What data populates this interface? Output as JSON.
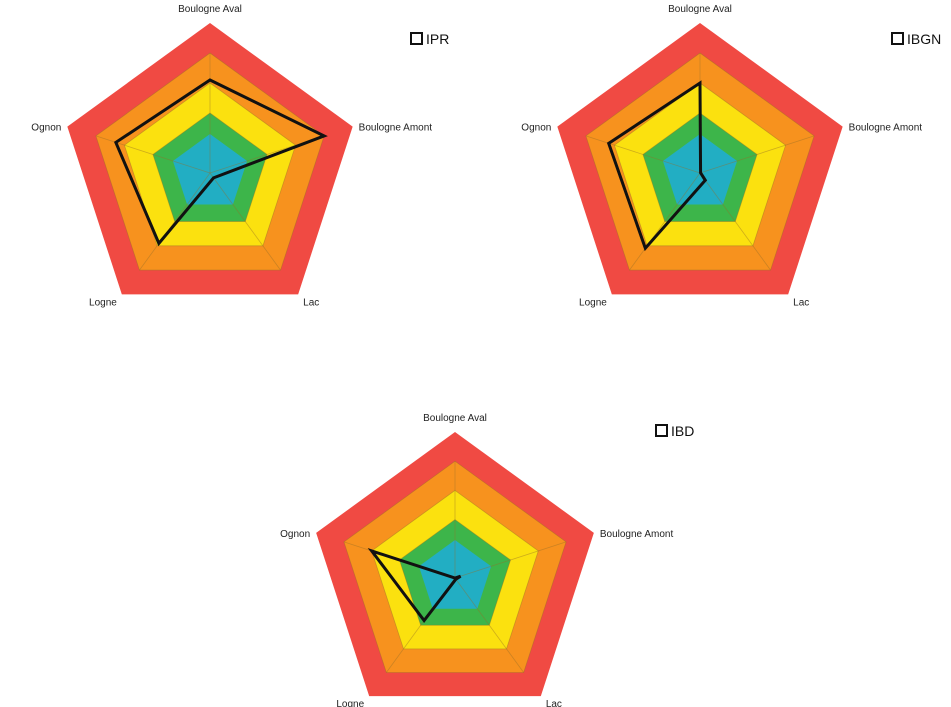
{
  "chart_data": [
    {
      "type": "radar",
      "axes": [
        "Boulogne Aval",
        "Boulogne Amont",
        "Lac",
        "Logne",
        "Ognon"
      ],
      "rlim": [
        0,
        5
      ],
      "bands": [
        {
          "value": 5,
          "color": "#f04a43"
        },
        {
          "value": 4,
          "color": "#f7921e"
        },
        {
          "value": 3,
          "color": "#fbe10f"
        },
        {
          "value": 2,
          "color": "#3db54a"
        },
        {
          "value": 1.3,
          "color": "#22aec3"
        }
      ],
      "legend_position": "top-right",
      "series": [
        {
          "name": "IPR",
          "color": "#111111",
          "values": [
            3.1,
            4.0,
            0.2,
            2.9,
            3.3
          ]
        }
      ]
    },
    {
      "type": "radar",
      "axes": [
        "Boulogne Aval",
        "Boulogne Amont",
        "Lac",
        "Logne",
        "Ognon"
      ],
      "rlim": [
        0,
        5
      ],
      "bands": [
        {
          "value": 5,
          "color": "#f04a43"
        },
        {
          "value": 4,
          "color": "#f7921e"
        },
        {
          "value": 3,
          "color": "#fbe10f"
        },
        {
          "value": 2,
          "color": "#3db54a"
        },
        {
          "value": 1.3,
          "color": "#22aec3"
        }
      ],
      "legend_position": "top-right",
      "series": [
        {
          "name": "IBGN",
          "color": "#111111",
          "values": [
            3.0,
            0.02,
            0.3,
            3.1,
            3.2
          ]
        }
      ]
    },
    {
      "type": "radar",
      "axes": [
        "Boulogne Aval",
        "Boulogne Amont",
        "Lac",
        "Logne",
        "Ognon"
      ],
      "rlim": [
        0,
        5
      ],
      "bands": [
        {
          "value": 5,
          "color": "#f04a43"
        },
        {
          "value": 4,
          "color": "#f7921e"
        },
        {
          "value": 3,
          "color": "#fbe10f"
        },
        {
          "value": 2,
          "color": "#3db54a"
        },
        {
          "value": 1.3,
          "color": "#22aec3"
        }
      ],
      "legend_position": "top-right",
      "series": [
        {
          "name": "IBD",
          "color": "#111111",
          "values": [
            0.0,
            0.2,
            0.05,
            1.8,
            3.0
          ]
        }
      ]
    }
  ]
}
